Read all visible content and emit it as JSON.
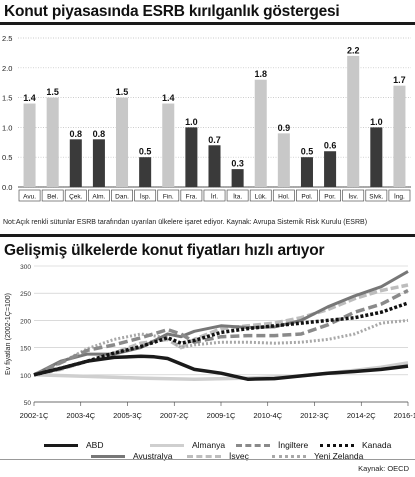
{
  "chart_data": [
    {
      "type": "bar",
      "title": "Konut piyasasında ESRB kırılganlık göstergesi",
      "categories": [
        "Avu.",
        "Bel.",
        "Çek.",
        "Alm.",
        "Dan.",
        "İsp.",
        "Fin.",
        "Fra.",
        "İrl.",
        "İta.",
        "Lük.",
        "Hol.",
        "Pol.",
        "Por.",
        "İsv.",
        "Slvk.",
        "İng."
      ],
      "values": [
        1.4,
        1.5,
        0.8,
        0.8,
        1.5,
        0.5,
        1.4,
        1.0,
        0.7,
        0.3,
        1.8,
        0.9,
        0.5,
        0.6,
        2.2,
        1.0,
        1.7
      ],
      "value_labels": [
        "1.4",
        "1.5",
        "0.8",
        "0.8",
        "1.5",
        "0.5",
        "1.4",
        "1.0",
        "0.7",
        "0.3",
        "1.8",
        "0.9",
        "0.5",
        "0.6",
        "2.2",
        "1.0",
        "1.7"
      ],
      "highlighted": [
        true,
        true,
        false,
        false,
        true,
        false,
        true,
        false,
        false,
        false,
        true,
        true,
        false,
        false,
        true,
        false,
        true
      ],
      "yticks": [
        "0.0",
        "0.5",
        "1.0",
        "1.5",
        "2.0",
        "2.5"
      ],
      "ylim": [
        0,
        2.5
      ],
      "colors": {
        "highlighted": "#c8c8c8",
        "normal": "#3a3a3a"
      },
      "note": "Not:Açık renkli sütunlar ESRB tarafından uyarılan ülkelere işaret ediyor. Kaynak: Avrupa Sistemik Risk Kurulu (ESRB)"
    },
    {
      "type": "line",
      "title": "Gelişmiş ülkelerde konut fiyatları hızlı artıyor",
      "ylabel": "Ev fiyatları (2002-1Ç=100)",
      "xlabel": "",
      "x_ticks": [
        "2002-1Ç",
        "2003-4Ç",
        "2005-3Ç",
        "2007-2Ç",
        "2009-1Ç",
        "2010-4Ç",
        "2012-3Ç",
        "2014-2Ç",
        "2016-1Ç"
      ],
      "x_range": [
        0,
        56
      ],
      "ylim": [
        50,
        300
      ],
      "grid": true,
      "series": [
        {
          "name": "ABD",
          "color": "#1a1a1a",
          "dash": "solid",
          "width": 3.5,
          "x": [
            0,
            4,
            8,
            12,
            16,
            18,
            20,
            24,
            28,
            32,
            36,
            40,
            44,
            48,
            52,
            56
          ],
          "values": [
            100,
            112,
            125,
            132,
            134,
            133,
            130,
            110,
            103,
            92,
            93,
            98,
            103,
            106,
            110,
            116
          ]
        },
        {
          "name": "Almanya",
          "color": "#cfcfcf",
          "dash": "solid",
          "width": 3.5,
          "x": [
            0,
            8,
            16,
            24,
            32,
            36,
            40,
            44,
            48,
            52,
            56
          ],
          "values": [
            100,
            97,
            94,
            92,
            94,
            96,
            98,
            103,
            108,
            114,
            122
          ]
        },
        {
          "name": "İngiltere",
          "color": "#8a8a8a",
          "dash": "9 4",
          "width": 3.5,
          "x": [
            0,
            4,
            8,
            12,
            16,
            20,
            22,
            24,
            28,
            32,
            36,
            40,
            44,
            48,
            52,
            56
          ],
          "values": [
            100,
            122,
            145,
            155,
            168,
            183,
            175,
            160,
            170,
            172,
            172,
            175,
            192,
            215,
            230,
            255
          ]
        },
        {
          "name": "Kanada",
          "color": "#111111",
          "dash": "3 2",
          "width": 3.5,
          "x": [
            0,
            4,
            8,
            12,
            16,
            20,
            22,
            24,
            28,
            32,
            36,
            40,
            44,
            48,
            52,
            56
          ],
          "values": [
            100,
            112,
            125,
            140,
            152,
            168,
            158,
            163,
            178,
            185,
            190,
            195,
            200,
            205,
            215,
            232
          ]
        },
        {
          "name": "Avustralya",
          "color": "#777777",
          "dash": "solid",
          "width": 3,
          "x": [
            0,
            4,
            8,
            12,
            16,
            20,
            22,
            24,
            28,
            32,
            36,
            40,
            44,
            48,
            52,
            56
          ],
          "values": [
            100,
            125,
            138,
            138,
            150,
            175,
            170,
            180,
            190,
            187,
            188,
            200,
            225,
            245,
            262,
            290
          ]
        },
        {
          "name": "İsveç",
          "color": "#bdbdbd",
          "dash": "8 3",
          "width": 3.5,
          "x": [
            0,
            4,
            8,
            12,
            16,
            20,
            22,
            24,
            28,
            32,
            36,
            40,
            44,
            48,
            52,
            56
          ],
          "values": [
            100,
            110,
            125,
            140,
            158,
            165,
            150,
            165,
            185,
            190,
            195,
            205,
            220,
            240,
            255,
            265
          ]
        },
        {
          "name": "Yeni Zelanda",
          "color": "#a8a8a8",
          "dash": "2 2",
          "width": 3,
          "x": [
            0,
            4,
            8,
            12,
            16,
            20,
            22,
            24,
            28,
            32,
            36,
            40,
            44,
            48,
            52,
            56
          ],
          "values": [
            100,
            122,
            148,
            165,
            175,
            168,
            150,
            155,
            160,
            160,
            158,
            160,
            165,
            175,
            195,
            200
          ]
        }
      ],
      "source": "Kaynak: OECD"
    }
  ]
}
